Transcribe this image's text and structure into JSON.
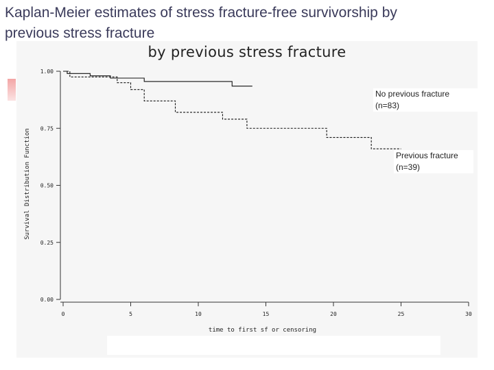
{
  "slide": {
    "title_line1": "Kaplan-Meier estimates of stress fracture-free survivorship by",
    "title_line2": "previous stress fracture"
  },
  "chart_data": {
    "type": "line",
    "title": "by previous stress fracture",
    "xlabel": "time to first sf or censoring",
    "ylabel": "Survival Distribution Function",
    "xlim": [
      0,
      30
    ],
    "ylim": [
      0,
      1
    ],
    "x_ticks": [
      0,
      5,
      10,
      15,
      20,
      25,
      30
    ],
    "y_ticks": [
      0.0,
      0.25,
      0.5,
      0.75,
      1.0
    ],
    "x_tick_labels": [
      "0",
      "5",
      "10",
      "15",
      "20",
      "25",
      "30"
    ],
    "y_tick_labels": [
      "0.00",
      "0.25",
      "0.50",
      "0.75",
      "1.00"
    ],
    "series": [
      {
        "name": "No previous fracture (n=83)",
        "label_line1": "No previous fracture",
        "label_line2": "(n=83)",
        "style": "solid",
        "color": "#111111",
        "steps": [
          [
            0,
            1.0
          ],
          [
            0.3,
            0.99
          ],
          [
            2.0,
            0.98
          ],
          [
            3.5,
            0.97
          ],
          [
            6.0,
            0.955
          ],
          [
            12.5,
            0.935
          ],
          [
            14.0,
            0.935
          ]
        ]
      },
      {
        "name": "Previous fracture (n=39)",
        "label_line1": "Previous fracture",
        "label_line2": "(n=39)",
        "style": "dashed",
        "color": "#111111",
        "steps": [
          [
            0,
            1.0
          ],
          [
            0.5,
            0.975
          ],
          [
            4.0,
            0.95
          ],
          [
            5.0,
            0.92
          ],
          [
            6.0,
            0.87
          ],
          [
            8.3,
            0.82
          ],
          [
            11.8,
            0.79
          ],
          [
            13.6,
            0.75
          ],
          [
            19.5,
            0.71
          ],
          [
            22.8,
            0.66
          ],
          [
            25.0,
            0.66
          ]
        ]
      }
    ],
    "grid": false,
    "legend": "inline labels"
  }
}
